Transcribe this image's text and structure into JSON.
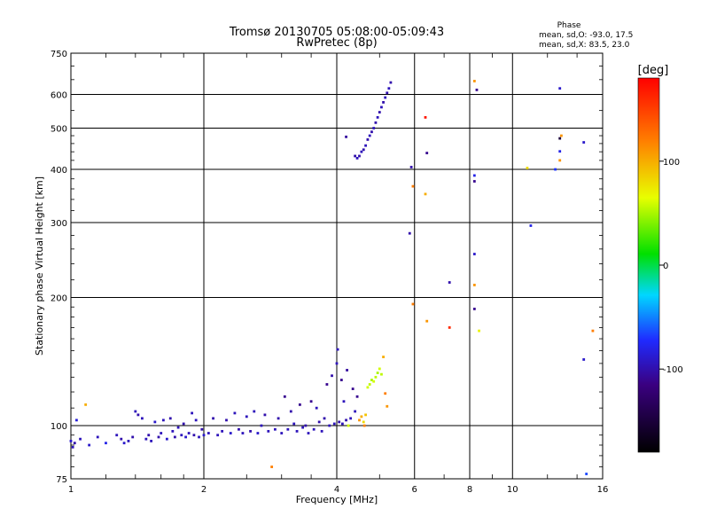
{
  "chart_data": {
    "type": "scatter",
    "title": "Tromsø 20130705 05:08:00-05:09:43",
    "subtitle": "RwPretec (8p)",
    "xlabel": "Frequency [MHz]",
    "ylabel": "Stationary phase Virtual Height [km]",
    "x_scale": "log",
    "y_scale": "log",
    "xlim": [
      1,
      16
    ],
    "ylim": [
      75,
      750
    ],
    "x_ticks": [
      1,
      2,
      4,
      6,
      8,
      10,
      16
    ],
    "x_tick_labels": [
      "1",
      "2",
      "4",
      "6",
      "8",
      "10",
      "16"
    ],
    "y_ticks": [
      75,
      100,
      200,
      300,
      400,
      500,
      600,
      750
    ],
    "y_tick_labels": [
      "75",
      "100",
      "200",
      "300",
      "400",
      "500",
      "600",
      "750"
    ],
    "grid": true,
    "phase_info": {
      "heading": "Phase",
      "line1": "mean, sd,O: -93.0, 17.5",
      "line2": "mean, sd,X: 83.5, 23.0"
    },
    "colorbar": {
      "label": "[deg]",
      "range": [
        -180,
        180
      ],
      "ticks": [
        100,
        0,
        -100
      ],
      "tick_labels": [
        "100",
        "0",
        "-100"
      ]
    },
    "series": [
      {
        "points": [
          [
            1.0,
            92,
            -90
          ],
          [
            1.01,
            89,
            -95
          ],
          [
            1.02,
            91,
            -100
          ],
          [
            1.03,
            103,
            -85
          ],
          [
            1.05,
            93,
            -95
          ],
          [
            1.08,
            112,
            100
          ],
          [
            1.1,
            90,
            -90
          ],
          [
            1.15,
            94,
            -95
          ],
          [
            1.2,
            91,
            -80
          ],
          [
            1.27,
            95,
            -95
          ],
          [
            1.3,
            93,
            -100
          ],
          [
            1.32,
            91,
            -90
          ],
          [
            1.35,
            92,
            -95
          ],
          [
            1.38,
            94,
            -100
          ],
          [
            1.4,
            108,
            -95
          ],
          [
            1.42,
            106,
            -100
          ],
          [
            1.45,
            104,
            -95
          ],
          [
            1.48,
            93,
            -95
          ],
          [
            1.5,
            95,
            -100
          ],
          [
            1.52,
            92,
            -95
          ],
          [
            1.55,
            102,
            -90
          ],
          [
            1.58,
            94,
            -100
          ],
          [
            1.6,
            96,
            -95
          ],
          [
            1.62,
            103,
            -95
          ],
          [
            1.65,
            93,
            -90
          ],
          [
            1.68,
            104,
            -100
          ],
          [
            1.7,
            97,
            -95
          ],
          [
            1.72,
            94,
            -100
          ],
          [
            1.75,
            99,
            -95
          ],
          [
            1.78,
            95,
            -95
          ],
          [
            1.8,
            101,
            -100
          ],
          [
            1.82,
            94,
            -90
          ],
          [
            1.85,
            96,
            -95
          ],
          [
            1.88,
            107,
            -95
          ],
          [
            1.9,
            95,
            -100
          ],
          [
            1.92,
            103,
            -95
          ],
          [
            1.95,
            94,
            -95
          ],
          [
            1.98,
            98,
            -100
          ],
          [
            2.0,
            95,
            -90
          ],
          [
            2.05,
            96,
            -95
          ],
          [
            2.1,
            104,
            -100
          ],
          [
            2.15,
            95,
            -95
          ],
          [
            2.2,
            97,
            -95
          ],
          [
            2.25,
            103,
            -100
          ],
          [
            2.3,
            96,
            -90
          ],
          [
            2.35,
            107,
            -95
          ],
          [
            2.4,
            98,
            -100
          ],
          [
            2.45,
            96,
            -95
          ],
          [
            2.5,
            105,
            -95
          ],
          [
            2.55,
            97,
            -100
          ],
          [
            2.6,
            108,
            -95
          ],
          [
            2.65,
            96,
            -90
          ],
          [
            2.7,
            100,
            -95
          ],
          [
            2.75,
            106,
            -100
          ],
          [
            2.8,
            97,
            -95
          ],
          [
            2.85,
            80,
            120
          ],
          [
            2.9,
            98,
            -95
          ],
          [
            2.95,
            104,
            -100
          ],
          [
            3.0,
            96,
            -95
          ],
          [
            3.05,
            117,
            -110
          ],
          [
            3.1,
            98,
            -95
          ],
          [
            3.15,
            108,
            -100
          ],
          [
            3.2,
            101,
            -95
          ],
          [
            3.25,
            97,
            -95
          ],
          [
            3.3,
            112,
            -110
          ],
          [
            3.35,
            99,
            -95
          ],
          [
            3.4,
            100,
            -100
          ],
          [
            3.45,
            96,
            -95
          ],
          [
            3.5,
            114,
            -110
          ],
          [
            3.55,
            98,
            -95
          ],
          [
            3.6,
            110,
            -95
          ],
          [
            3.65,
            102,
            -100
          ],
          [
            3.7,
            97,
            -95
          ],
          [
            3.75,
            104,
            -100
          ],
          [
            3.8,
            125,
            -110
          ],
          [
            3.85,
            100,
            -95
          ],
          [
            3.9,
            131,
            -100
          ],
          [
            3.95,
            101,
            -95
          ],
          [
            4.0,
            140,
            -95
          ],
          [
            4.02,
            151,
            -95
          ],
          [
            4.05,
            102,
            -100
          ],
          [
            4.1,
            128,
            -110
          ],
          [
            4.12,
            101,
            -95
          ],
          [
            4.15,
            114,
            -95
          ],
          [
            4.2,
            103,
            -100
          ],
          [
            4.22,
            135,
            -105
          ],
          [
            4.25,
            100,
            60
          ],
          [
            4.3,
            104,
            -95
          ],
          [
            4.35,
            122,
            -110
          ],
          [
            4.4,
            108,
            -95
          ],
          [
            4.45,
            117,
            -110
          ],
          [
            4.5,
            103,
            110
          ],
          [
            4.55,
            105,
            100
          ],
          [
            4.6,
            102,
            80
          ],
          [
            4.62,
            100,
            120
          ],
          [
            4.65,
            106,
            90
          ],
          [
            4.7,
            123,
            60
          ],
          [
            4.75,
            125,
            55
          ],
          [
            4.8,
            128,
            50
          ],
          [
            4.85,
            127,
            60
          ],
          [
            4.9,
            130,
            55
          ],
          [
            4.95,
            133,
            50
          ],
          [
            5.0,
            136,
            60
          ],
          [
            5.05,
            132,
            55
          ],
          [
            5.1,
            145,
            100
          ],
          [
            5.15,
            119,
            120
          ],
          [
            5.2,
            111,
            110
          ],
          [
            4.4,
            430,
            -100
          ],
          [
            4.45,
            425,
            -95
          ],
          [
            4.5,
            430,
            -100
          ],
          [
            4.55,
            440,
            -95
          ],
          [
            4.6,
            445,
            -100
          ],
          [
            4.65,
            455,
            -95
          ],
          [
            4.7,
            470,
            -100
          ],
          [
            4.75,
            480,
            -95
          ],
          [
            4.8,
            490,
            -100
          ],
          [
            4.85,
            500,
            -95
          ],
          [
            4.9,
            515,
            -100
          ],
          [
            4.95,
            530,
            -95
          ],
          [
            5.0,
            545,
            -100
          ],
          [
            5.05,
            560,
            -95
          ],
          [
            5.1,
            575,
            -100
          ],
          [
            5.15,
            590,
            -95
          ],
          [
            5.2,
            605,
            -100
          ],
          [
            5.25,
            620,
            -95
          ],
          [
            5.3,
            640,
            -100
          ],
          [
            4.2,
            477,
            -105
          ],
          [
            5.9,
            405,
            -100
          ],
          [
            5.85,
            283,
            -100
          ],
          [
            5.95,
            365,
            120
          ],
          [
            5.95,
            193,
            120
          ],
          [
            6.35,
            530,
            170
          ],
          [
            6.4,
            437,
            -110
          ],
          [
            6.35,
            350,
            100
          ],
          [
            6.4,
            176,
            110
          ],
          [
            7.2,
            217,
            -100
          ],
          [
            7.2,
            170,
            160
          ],
          [
            8.2,
            645,
            110
          ],
          [
            8.3,
            615,
            -110
          ],
          [
            8.2,
            387,
            -80
          ],
          [
            8.2,
            375,
            -110
          ],
          [
            8.2,
            253,
            -90
          ],
          [
            8.2,
            214,
            110
          ],
          [
            8.2,
            188,
            -110
          ],
          [
            8.4,
            167,
            70
          ],
          [
            10.8,
            403,
            80
          ],
          [
            11.0,
            295,
            -80
          ],
          [
            12.5,
            400,
            -70
          ],
          [
            12.8,
            620,
            -90
          ],
          [
            12.8,
            473,
            -150
          ],
          [
            12.8,
            441,
            -80
          ],
          [
            12.8,
            420,
            110
          ],
          [
            12.9,
            480,
            110
          ],
          [
            14.5,
            463,
            -90
          ],
          [
            14.5,
            143,
            -90
          ],
          [
            14.7,
            77,
            -65
          ],
          [
            15.2,
            167,
            120
          ]
        ]
      }
    ]
  }
}
